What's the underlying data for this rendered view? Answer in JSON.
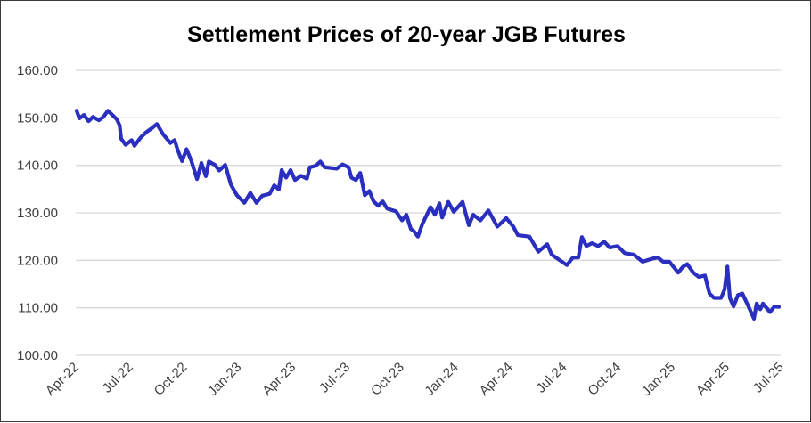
{
  "chart_data": {
    "type": "line",
    "title": "Settlement Prices of 20-year JGB Futures",
    "xlabel": "",
    "ylabel": "",
    "ylim": [
      100,
      160
    ],
    "yticks": [
      "100.00",
      "110.00",
      "120.00",
      "130.00",
      "140.00",
      "150.00",
      "160.00"
    ],
    "ytick_values": [
      100,
      110,
      120,
      130,
      140,
      150,
      160
    ],
    "xlim_months_from_apr22": [
      0,
      39
    ],
    "xticks": [
      "Apr-22",
      "Jul-22",
      "Oct-22",
      "Jan-23",
      "Apr-23",
      "Jul-23",
      "Oct-23",
      "Jan-24",
      "Apr-24",
      "Jul-24",
      "Oct-24",
      "Jan-25",
      "Apr-25",
      "Jul-25"
    ],
    "xtick_months": [
      0,
      3,
      6,
      9,
      12,
      15,
      18,
      21,
      24,
      27,
      30,
      33,
      36,
      39
    ],
    "grid": "horizontal",
    "legend": "none",
    "series": [
      {
        "name": "Settlement Price",
        "color": "#2a2fbf",
        "x": [
          0.05,
          0.2,
          0.46,
          0.71,
          0.95,
          1.28,
          1.53,
          1.78,
          2.27,
          2.43,
          2.51,
          2.76,
          3.09,
          3.25,
          3.58,
          3.91,
          4.24,
          4.49,
          4.82,
          5.23,
          5.47,
          5.64,
          5.88,
          6.13,
          6.38,
          6.71,
          6.95,
          7.2,
          7.36,
          7.69,
          7.94,
          8.27,
          8.59,
          8.92,
          9.33,
          9.66,
          10,
          10.32,
          10.73,
          10.98,
          11.23,
          11.39,
          11.64,
          11.88,
          12.13,
          12.46,
          12.79,
          12.95,
          13.28,
          13.53,
          13.77,
          14.43,
          14.76,
          15.09,
          15.25,
          15.5,
          15.74,
          15.99,
          16.24,
          16.48,
          16.73,
          16.98,
          17.22,
          17.72,
          18.05,
          18.29,
          18.54,
          18.69,
          18.93,
          19.18,
          19.63,
          19.87,
          20.12,
          20.27,
          20.61,
          20.91,
          21.4,
          21.75,
          21.99,
          22.39,
          22.83,
          23.32,
          23.82,
          24.21,
          24.46,
          25.1,
          25.59,
          26.08,
          26.33,
          26.78,
          27.17,
          27.51,
          27.81,
          28,
          28.25,
          28.55,
          28.9,
          29.24,
          29.54,
          29.98,
          30.37,
          30.87,
          31.36,
          31.85,
          32.2,
          32.49,
          32.84,
          33.33,
          33.58,
          33.83,
          34.17,
          34.47,
          34.81,
          35.06,
          35.31,
          35.7,
          35.9,
          36.05,
          36.19,
          36.39,
          36.64,
          36.88,
          37.18,
          37.52,
          37.67,
          37.87,
          38.02,
          38.41,
          38.66,
          38.9
        ],
        "values": [
          151.5,
          149.9,
          150.6,
          149.3,
          150.2,
          149.5,
          150.2,
          151.5,
          149.7,
          148.4,
          145.6,
          144.3,
          145.3,
          144.1,
          145.8,
          147,
          147.9,
          148.7,
          146.6,
          144.7,
          145.3,
          143.2,
          140.9,
          143.4,
          141.1,
          137.1,
          140.5,
          137.7,
          140.8,
          140.1,
          138.9,
          140.1,
          135.9,
          133.7,
          132.1,
          134.2,
          132.1,
          133.6,
          134,
          135.8,
          134.9,
          139,
          137.4,
          139,
          136.9,
          137.8,
          137.2,
          139.6,
          139.9,
          140.8,
          139.6,
          139.3,
          140.2,
          139.6,
          137.4,
          136.9,
          138.4,
          133.7,
          134.6,
          132.4,
          131.5,
          132.4,
          130.9,
          130.3,
          128.4,
          129.6,
          126.6,
          126.2,
          125,
          127.7,
          131.2,
          129.6,
          132,
          129,
          132.3,
          130.2,
          132.3,
          127.4,
          129.6,
          128.4,
          130.5,
          127.1,
          128.9,
          127.1,
          125.3,
          125,
          121.8,
          123.4,
          121.2,
          120,
          119,
          120.6,
          120.6,
          124.9,
          123,
          123.6,
          123,
          123.9,
          122.7,
          123,
          121.5,
          121.2,
          119.7,
          120.3,
          120.6,
          119.7,
          119.7,
          117.4,
          118.6,
          119.2,
          117.4,
          116.5,
          116.8,
          113,
          112.1,
          112.1,
          113.9,
          118.7,
          112.1,
          110.3,
          112.7,
          113,
          110.6,
          107.7,
          110.9,
          109.7,
          110.9,
          109.1,
          110.3,
          110.2
        ]
      }
    ]
  }
}
